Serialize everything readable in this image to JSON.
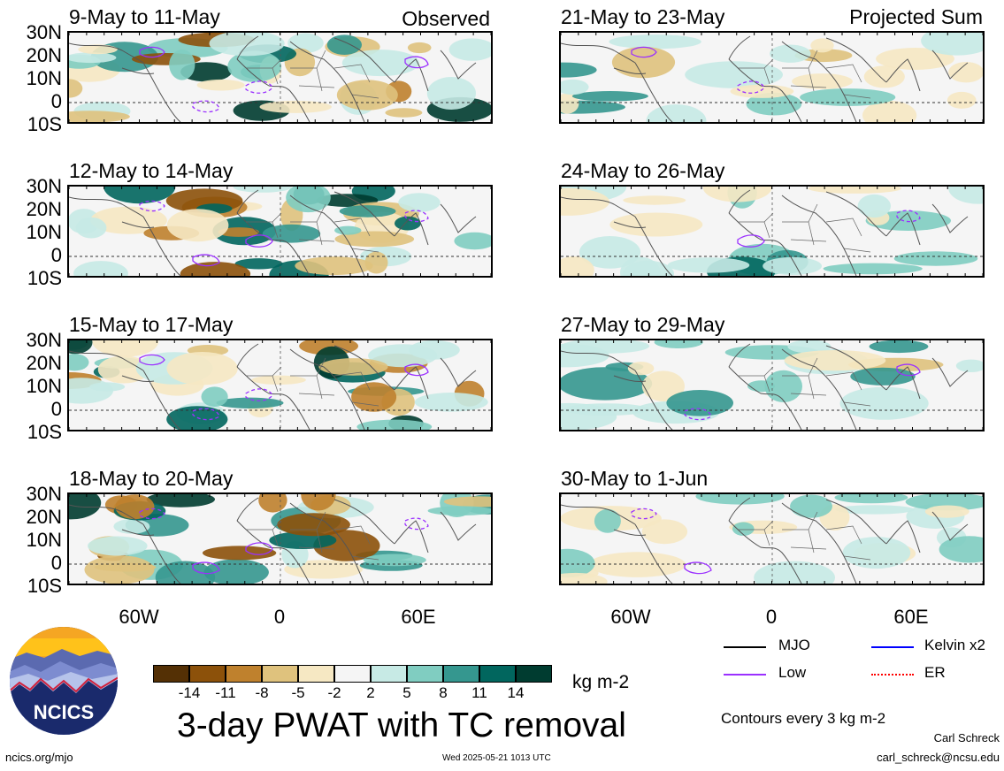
{
  "panels_left": [
    {
      "title": "9-May to 11-May",
      "tag": "Observed"
    },
    {
      "title": "12-May to 14-May",
      "tag": ""
    },
    {
      "title": "15-May to 17-May",
      "tag": ""
    },
    {
      "title": "18-May to 20-May",
      "tag": ""
    }
  ],
  "panels_right": [
    {
      "title": "21-May to 23-May",
      "tag": "Projected Sum"
    },
    {
      "title": "24-May to 26-May",
      "tag": ""
    },
    {
      "title": "27-May to 29-May",
      "tag": ""
    },
    {
      "title": "30-May to 1-Jun",
      "tag": ""
    }
  ],
  "lat_labels": [
    "30N",
    "20N",
    "10N",
    "0",
    "10S"
  ],
  "lon_labels": [
    "60W",
    "0",
    "60E"
  ],
  "colorbar": {
    "ticks": [
      "-14",
      "-11",
      "-8",
      "-5",
      "-2",
      "2",
      "5",
      "8",
      "11",
      "14"
    ],
    "colors": [
      "#543005",
      "#8c510a",
      "#bf812d",
      "#dfc27d",
      "#f6e8c3",
      "#f5f5f5",
      "#c7eae5",
      "#80cdc1",
      "#35978f",
      "#01665e",
      "#003c30"
    ],
    "units": "kg m-2"
  },
  "legend": {
    "mjo": "MJO",
    "kelvin": "Kelvin x2",
    "low": "Low",
    "er": "ER",
    "colors": {
      "mjo": "#000000",
      "kelvin": "#0000ff",
      "low": "#9b30ff",
      "er": "#ff0000"
    }
  },
  "contours_note": "Contours every 3 kg m-2",
  "main_title": "3-day PWAT with TC removal",
  "logo_text": "NCICS",
  "footer": {
    "url": "ncics.org/mjo",
    "timestamp": "Wed 2025-05-21 1013 UTC",
    "author": "Carl Schreck",
    "email": "carl_schreck@ncsu.edu"
  }
}
